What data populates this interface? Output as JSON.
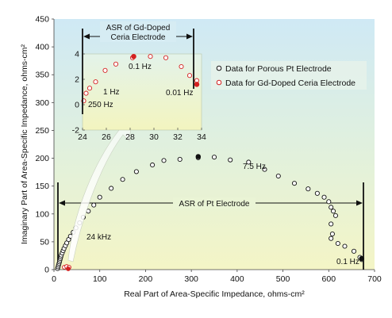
{
  "chart_data": {
    "type": "scatter",
    "xlabel": "Real Part of Area-Specific Impedance, ohms-cm²",
    "ylabel": "Imaginary Part of Area-Specific Impedance, ohms-cm²",
    "xlim": [
      0,
      700
    ],
    "ylim": [
      0,
      450
    ],
    "xticks": [
      0,
      100,
      200,
      300,
      400,
      500,
      600,
      700
    ],
    "yticks": [
      0,
      50,
      100,
      150,
      200,
      250,
      300,
      350,
      400,
      450
    ],
    "legend": {
      "placement": "right",
      "entries": [
        {
          "name": "Data for Porous Pt Electrode",
          "color": "#111111"
        },
        {
          "name": "Data for Gd-Doped Ceria Electrode",
          "color": "#d42020"
        }
      ]
    },
    "series": [
      {
        "name": "Data for Porous Pt Electrode",
        "color": "#111111",
        "points": [
          [
            8,
            2
          ],
          [
            9,
            5
          ],
          [
            10,
            8
          ],
          [
            11,
            11
          ],
          [
            12,
            14
          ],
          [
            13,
            17
          ],
          [
            14,
            20
          ],
          [
            15,
            23
          ],
          [
            16,
            26
          ],
          [
            18,
            30
          ],
          [
            20,
            34
          ],
          [
            22,
            38
          ],
          [
            25,
            43
          ],
          [
            28,
            48
          ],
          [
            32,
            54
          ],
          [
            36,
            60
          ],
          [
            42,
            67
          ],
          [
            48,
            75
          ],
          [
            56,
            84
          ],
          [
            64,
            94
          ],
          [
            75,
            105
          ],
          [
            87,
            116
          ],
          [
            100,
            130
          ],
          [
            125,
            146
          ],
          [
            150,
            162
          ],
          [
            180,
            176
          ],
          [
            215,
            188
          ],
          [
            240,
            196
          ],
          [
            275,
            198
          ],
          [
            315,
            201
          ],
          [
            350,
            202
          ],
          [
            385,
            197
          ],
          [
            425,
            193
          ],
          [
            460,
            180
          ],
          [
            490,
            168
          ],
          [
            525,
            155
          ],
          [
            555,
            145
          ],
          [
            575,
            137
          ],
          [
            590,
            130
          ],
          [
            600,
            122
          ],
          [
            605,
            112
          ],
          [
            610,
            105
          ],
          [
            615,
            97
          ],
          [
            605,
            82
          ],
          [
            608,
            64
          ],
          [
            605,
            56
          ],
          [
            620,
            47
          ],
          [
            635,
            42
          ],
          [
            655,
            33
          ],
          [
            668,
            22
          ],
          [
            672,
            18
          ]
        ],
        "filled_points": [
          [
            315,
            203
          ],
          [
            672,
            20
          ]
        ]
      },
      {
        "name": "Data for Gd-Doped Ceria Electrode",
        "color": "#d42020",
        "points": [
          [
            24.1,
            0.3
          ],
          [
            24.3,
            0.9
          ],
          [
            24.6,
            1.3
          ],
          [
            25.1,
            1.8
          ],
          [
            25.9,
            2.7
          ],
          [
            26.8,
            3.2
          ],
          [
            28.2,
            3.7
          ],
          [
            29.7,
            3.8
          ],
          [
            31.0,
            3.7
          ],
          [
            32.3,
            3.0
          ],
          [
            33.0,
            2.3
          ],
          [
            33.6,
            1.9
          ]
        ],
        "filled_points": [
          [
            28.3,
            3.8
          ],
          [
            33.6,
            1.6
          ]
        ],
        "inset": {
          "xlim": [
            24,
            34
          ],
          "ylim": [
            -2,
            4
          ],
          "xticks": [
            24,
            26,
            28,
            30,
            32,
            34
          ],
          "yticks": [
            -2,
            0,
            2,
            4
          ]
        }
      }
    ],
    "annotations": {
      "freq_pt_low": "7.5 Hz",
      "freq_pt_high": "24 kHz",
      "freq_pt_end": "0.1 Hz",
      "freq_ceria_250": "250 Hz",
      "freq_ceria_1": "1 Hz",
      "freq_ceria_01": "0.1 Hz",
      "freq_ceria_001": "0.01 Hz",
      "asr_pt": "ASR of Pt Electrode",
      "asr_ceria_line1": "ASR of Gd-Doped",
      "asr_ceria_line2": "Ceria Electrode"
    }
  }
}
